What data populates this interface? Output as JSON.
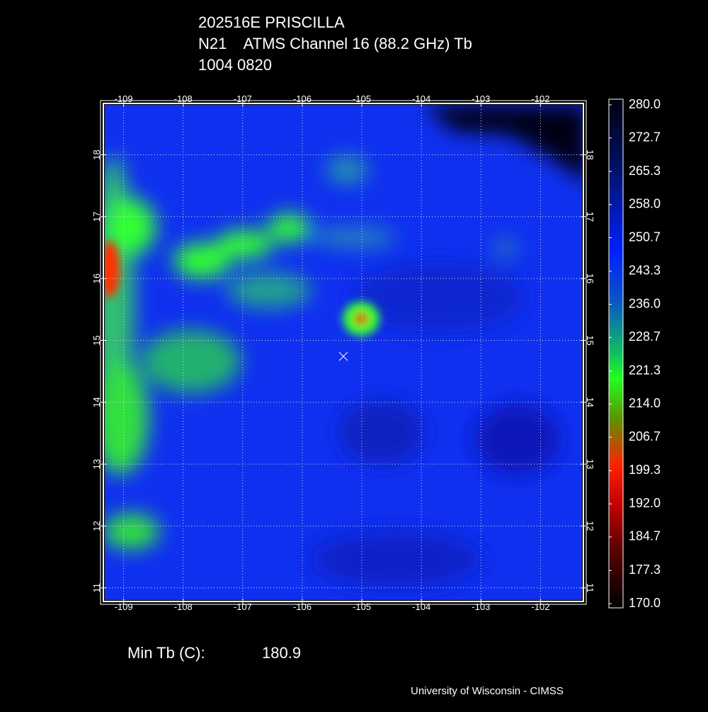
{
  "header": {
    "line1": "202516E PRISCILLA",
    "line2": "N21    ATMS Channel 16 (88.2 GHz) Tb",
    "line3": "1004 0820"
  },
  "map": {
    "xlim": [
      -109.34,
      -101.28
    ],
    "ylim": [
      10.78,
      18.83
    ],
    "xticks": [
      -109,
      -108,
      -107,
      -106,
      -105,
      -104,
      -103,
      -102
    ],
    "yticks": [
      18,
      17,
      16,
      15,
      14,
      13,
      12,
      11
    ]
  },
  "colorbar": {
    "lim": [
      170,
      280
    ],
    "ticks": [
      {
        "value": 280,
        "label": "280.0"
      },
      {
        "value": 272.7,
        "label": "272.7"
      },
      {
        "value": 265.3,
        "label": "265.3"
      },
      {
        "value": 258,
        "label": "258.0"
      },
      {
        "value": 250.7,
        "label": "250.7"
      },
      {
        "value": 243.3,
        "label": "243.3"
      },
      {
        "value": 236,
        "label": "236.0"
      },
      {
        "value": 228.7,
        "label": "228.7"
      },
      {
        "value": 221.3,
        "label": "221.3"
      },
      {
        "value": 214,
        "label": "214.0"
      },
      {
        "value": 206.7,
        "label": "206.7"
      },
      {
        "value": 199.3,
        "label": "199.3"
      },
      {
        "value": 192,
        "label": "192.0"
      },
      {
        "value": 184.7,
        "label": "184.7"
      },
      {
        "value": 177.3,
        "label": "177.3"
      },
      {
        "value": 170,
        "label": "170.0"
      }
    ]
  },
  "footer": {
    "min_label": "Min Tb (C):",
    "min_value": "180.9",
    "credit": "University of Wisconsin - CIMSS"
  }
}
